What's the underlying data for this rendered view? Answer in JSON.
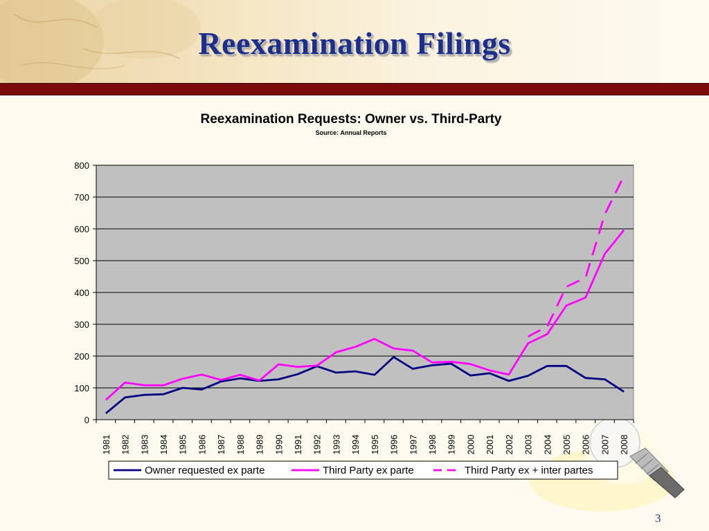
{
  "slide": {
    "title": "Reexamination Filings",
    "page_number": "3"
  },
  "colors": {
    "title_text": "#1c2f8a",
    "title_bar": "#7a0a0a",
    "plot_background": "#c0c0c0",
    "owner_series": "#000080",
    "third_party_series": "#ff00ff"
  },
  "chart_data": {
    "type": "line",
    "title": "Reexamination Requests: Owner vs. Third-Party",
    "subtitle": "Source: Annual Reports",
    "xlabel": "",
    "ylabel": "",
    "ylim": [
      0,
      800
    ],
    "yticks": [
      0,
      100,
      200,
      300,
      400,
      500,
      600,
      700,
      800
    ],
    "grid": true,
    "legend_position": "bottom",
    "x": [
      "1981",
      "1982",
      "1983",
      "1984",
      "1985",
      "1986",
      "1987",
      "1988",
      "1989",
      "1990",
      "1991",
      "1992",
      "1993",
      "1994",
      "1995",
      "1996",
      "1997",
      "1998",
      "1999",
      "2000",
      "2001",
      "2002",
      "2003",
      "2004",
      "2005",
      "2006",
      "2007",
      "2008"
    ],
    "series": [
      {
        "name": "Owner requested ex parte",
        "color": "#000080",
        "style": "solid",
        "values": [
          20,
          70,
          78,
          80,
          100,
          95,
          120,
          130,
          122,
          127,
          143,
          168,
          148,
          152,
          141,
          197,
          160,
          171,
          176,
          139,
          146,
          122,
          138,
          169,
          169,
          131,
          127,
          88
        ]
      },
      {
        "name": "Third Party ex parte",
        "color": "#ff00ff",
        "style": "solid",
        "values": [
          62,
          117,
          108,
          108,
          129,
          142,
          125,
          141,
          123,
          174,
          166,
          170,
          212,
          229,
          254,
          224,
          217,
          180,
          182,
          175,
          155,
          142,
          240,
          269,
          359,
          384,
          521,
          596
        ]
      },
      {
        "name": "Third Party ex + inter partes",
        "color": "#ff00ff",
        "style": "dashed",
        "values": [
          null,
          null,
          null,
          null,
          null,
          null,
          null,
          null,
          null,
          null,
          null,
          null,
          null,
          null,
          null,
          null,
          null,
          null,
          null,
          null,
          null,
          null,
          261,
          293,
          418,
          446,
          645,
          766
        ]
      }
    ]
  }
}
